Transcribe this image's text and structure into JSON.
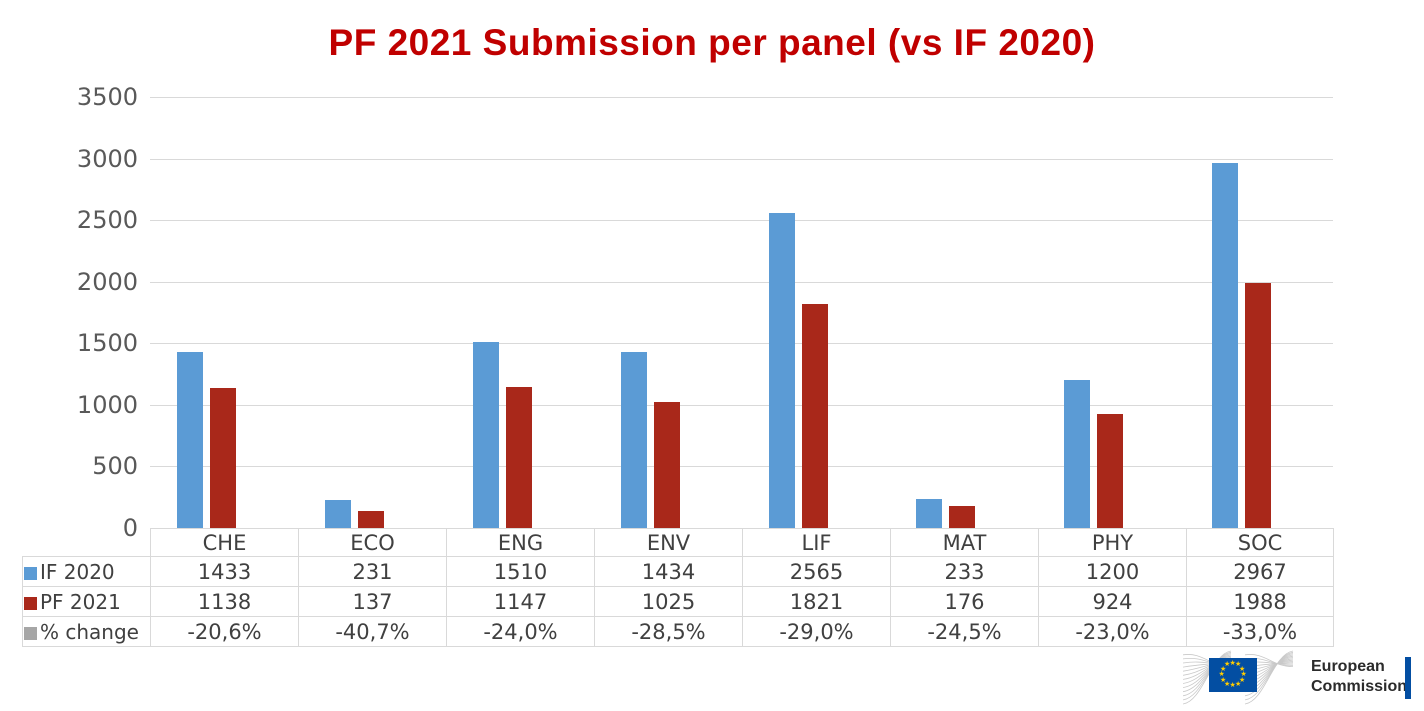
{
  "title": {
    "text": "PF 2021 Submission per panel (vs IF 2020)",
    "color": "#c00000"
  },
  "chart_data": {
    "type": "bar",
    "title": "PF 2021 Submission per panel (vs IF 2020)",
    "categories": [
      "CHE",
      "ECO",
      "ENG",
      "ENV",
      "LIF",
      "MAT",
      "PHY",
      "SOC"
    ],
    "series": [
      {
        "name": "IF 2020",
        "color": "#5b9bd5",
        "values": [
          1433,
          231,
          1510,
          1434,
          2565,
          233,
          1200,
          2967
        ]
      },
      {
        "name": "PF 2021",
        "color": "#a9281a",
        "values": [
          1138,
          137,
          1147,
          1025,
          1821,
          176,
          924,
          1988
        ]
      }
    ],
    "extra_rows": [
      {
        "name": "% change",
        "color": "#a6a6a6",
        "values": [
          "-20,6%",
          "-40,7%",
          "-24,0%",
          "-28,5%",
          "-29,0%",
          "-24,5%",
          "-23,0%",
          "-33,0%"
        ]
      }
    ],
    "xlabel": "",
    "ylabel": "",
    "ylim": [
      0,
      3500
    ],
    "yticks": [
      0,
      500,
      1000,
      1500,
      2000,
      2500,
      3000,
      3500
    ],
    "grid": true,
    "legend_position": "table-left",
    "gridline_color": "#d9d9d9",
    "tick_label_color": "#595959",
    "table_text_color": "#404040"
  },
  "footer": {
    "logo": {
      "name": "european-commission-logo",
      "line1": "European",
      "line2": "Commission",
      "flag_color": "#034ea2",
      "star_color": "#ffcc00"
    }
  }
}
